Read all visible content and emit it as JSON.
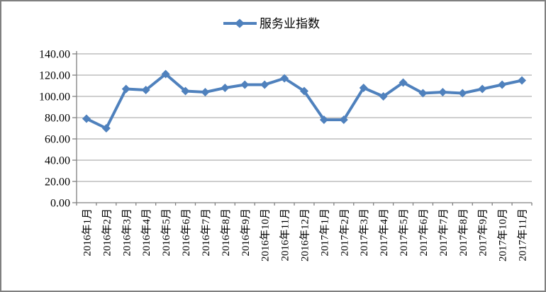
{
  "chart_data": {
    "type": "line",
    "legend": "服务业指数",
    "legend_position": "top-center",
    "categories": [
      "2016年1月",
      "2016年2月",
      "2016年3月",
      "2016年4月",
      "2016年5月",
      "2016年6月",
      "2016年7月",
      "2016年8月",
      "2016年9月",
      "2016年10月",
      "2016年11月",
      "2016年12月",
      "2017年1月",
      "2017年2月",
      "2017年3月",
      "2017年4月",
      "2017年5月",
      "2017年6月",
      "2017年7月",
      "2017年8月",
      "2017年9月",
      "2017年10月",
      "2017年11月"
    ],
    "series": [
      {
        "name": "服务业指数",
        "values": [
          79,
          70,
          107,
          106,
          121,
          105,
          104,
          108,
          111,
          111,
          117,
          105,
          78,
          78,
          108,
          100,
          113,
          103,
          104,
          103,
          107,
          111,
          115
        ]
      }
    ],
    "xlabel": "",
    "ylabel": "",
    "ylim": [
      0,
      140
    ],
    "y_tick_step": 20,
    "y_tick_labels": [
      "0.00",
      "20.00",
      "40.00",
      "60.00",
      "80.00",
      "100.00",
      "120.00",
      "140.00"
    ],
    "x_label_rotation": 90,
    "grid": "horizontal",
    "marker": "diamond",
    "colors": {
      "series": "#4F81BD",
      "gridline": "#9C9C9C",
      "axis": "#808080",
      "text": "#000000",
      "frame_border": "#808080",
      "background": "#FFFFFF"
    }
  }
}
